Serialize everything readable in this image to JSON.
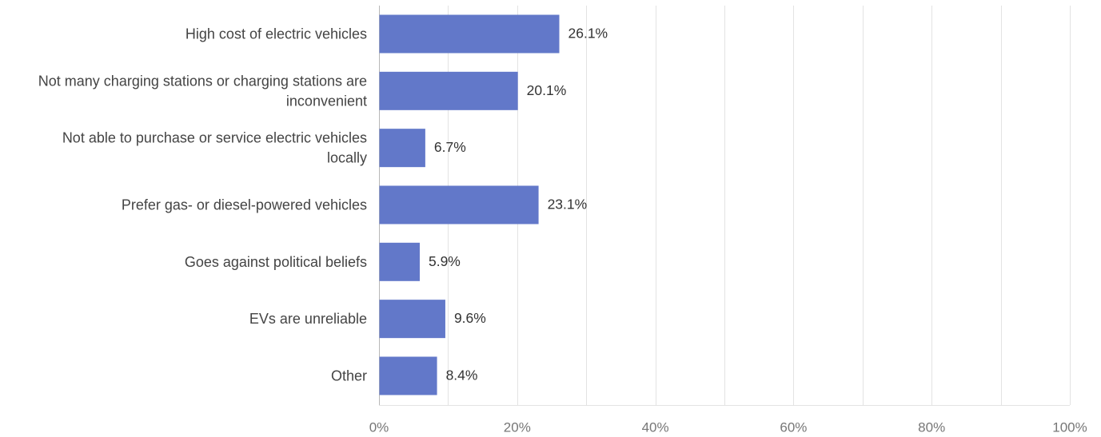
{
  "colors": {
    "bar": "#6278c9",
    "grid": "#e3e3e3",
    "axis": "#b8b8b8"
  },
  "chart_data": {
    "type": "bar",
    "orientation": "horizontal",
    "categories": [
      [
        "High cost of electric vehicles"
      ],
      [
        "Not many charging stations or charging stations are",
        "inconvenient"
      ],
      [
        "Not able to purchase or service electric vehicles",
        "locally"
      ],
      [
        "Prefer gas- or diesel-powered vehicles"
      ],
      [
        "Goes against political beliefs"
      ],
      [
        "EVs are unreliable"
      ],
      [
        "Other"
      ]
    ],
    "values": [
      26.1,
      20.1,
      6.7,
      23.1,
      5.9,
      9.6,
      8.4
    ],
    "value_labels": [
      "26.1%",
      "20.1%",
      "6.7%",
      "23.1%",
      "5.9%",
      "9.6%",
      "8.4%"
    ],
    "xlim": [
      0,
      100
    ],
    "x_ticks": [
      0,
      20,
      40,
      60,
      80,
      100
    ],
    "x_tick_labels": [
      "0%",
      "20%",
      "40%",
      "60%",
      "80%",
      "100%"
    ],
    "minor_gridlines_every": 10,
    "grid": true,
    "legend": "none"
  }
}
